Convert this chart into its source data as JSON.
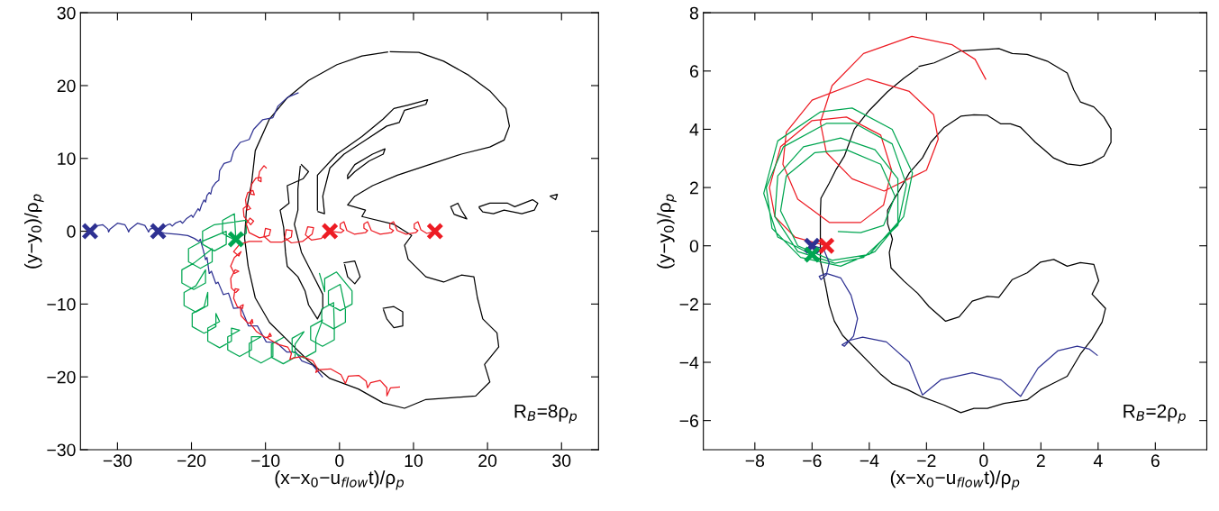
{
  "chart_data": [
    {
      "type": "line",
      "xlabel": "(x−x$_{0}$−u$_{flow}$t)/ρ$_{p}$",
      "ylabel": "(y−y$_{0}$)/ρ$_{p}$",
      "xlim": [
        -35,
        35
      ],
      "ylim": [
        -30,
        30
      ],
      "xticks": [
        -30,
        -20,
        -10,
        0,
        10,
        20,
        30
      ],
      "yticks": [
        -30,
        -20,
        -10,
        0,
        10,
        20,
        30
      ],
      "annotations": [
        "R$_{B}$=8ρ$_{p}$"
      ],
      "series": [
        {
          "type": "line",
          "color": "#000000",
          "x": [
            6.87,
            10.71,
            14.07,
            17.44,
            20.32,
            22.48,
            22.96,
            22.24,
            20.32,
            16.47,
            12.15,
            7.83,
            4.47,
            2.07,
            1.1,
            3.51,
            3.03,
            7.35,
            9.75,
            8.79,
            9.27,
            11.67,
            14.07,
            16.47,
            18.16,
            18.64,
            19.36,
            21.28,
            21.52,
            19.6,
            20.32,
            18.4,
            15.03,
            11.67,
            8.79,
            5.91,
            2.55,
            -1.3,
            -4.18,
            -6.58,
            -9.46,
            -11.38,
            -12.34,
            -12.82,
            -12.58,
            -11.86,
            -11.38,
            -9.46,
            -7.06,
            -4.18,
            -0.34,
            3.03,
            6.5
          ],
          "values": [
            24.65,
            24.55,
            23.35,
            21.43,
            19.26,
            16.85,
            14.44,
            12.52,
            11.56,
            10.59,
            9.15,
            7.7,
            6.26,
            4.81,
            3.61,
            2.89,
            2.02,
            0.96,
            -0.58,
            -1.93,
            -3.85,
            -6.26,
            -6.98,
            -6.02,
            -6.26,
            -9.15,
            -12.04,
            -13.96,
            -15.89,
            -18.3,
            -20.7,
            -22.63,
            -22.87,
            -23.11,
            -24.31,
            -23.59,
            -21.67,
            -20.22,
            -17.81,
            -15.41,
            -12.52,
            -9.15,
            -4.81,
            -0.96,
            2.89,
            6.74,
            11.07,
            15.41,
            18.3,
            20.7,
            22.87,
            24.07,
            24.6
          ]
        },
        {
          "type": "line",
          "color": "#000000",
          "x": [
            -5.14,
            -4.18,
            -4.9,
            -7.06,
            -6.82,
            -8.02,
            -7.54,
            -7.3,
            -7.06,
            -5.62,
            -4.66,
            -4.18,
            -2.98,
            -2.26,
            -2.26,
            -3.22,
            -4.18,
            -5.14,
            -5.62,
            -6.1,
            -5.62,
            -5.62,
            -5.3
          ],
          "values": [
            9.15,
            8.18,
            7.22,
            6.26,
            3.85,
            2.89,
            0.48,
            -2.89,
            -4.81,
            -6.26,
            -8.18,
            -10.11,
            -12.04,
            -10.59,
            -8.67,
            -6.74,
            -4.81,
            -2.89,
            -0.96,
            0.96,
            2.89,
            5.78,
            8.9
          ]
        },
        {
          "type": "line",
          "color": "#000000",
          "x": [
            -2.98,
            -2.98,
            -0.34,
            3.03,
            5.91,
            7.35,
            9.27,
            11.91,
            11.67,
            8.79,
            8.07,
            6.39,
            3.51,
            0.62,
            -1.3,
            -2.26,
            -2.02,
            -2.9
          ],
          "values": [
            2.89,
            7.7,
            10.59,
            13.0,
            15.41,
            16.85,
            17.33,
            18.05,
            17.43,
            16.61,
            14.93,
            14.44,
            12.52,
            10.59,
            8.67,
            4.81,
            2.41,
            2.7
          ]
        },
        {
          "type": "line",
          "color": "#000000",
          "x": [
            1.1,
            2.07,
            4.47,
            6.15,
            5.91,
            3.99,
            2.07,
            1.1,
            1.1
          ],
          "values": [
            7.7,
            9.15,
            10.59,
            11.31,
            10.59,
            9.63,
            8.18,
            7.22,
            7.6
          ]
        },
        {
          "type": "line",
          "color": "#000000",
          "x": [
            18.88,
            20.32,
            22.72,
            23.68,
            26.08,
            26.8,
            26.32,
            24.64,
            22.24,
            20.8,
            19.36,
            18.9
          ],
          "values": [
            3.37,
            3.85,
            3.85,
            3.37,
            4.33,
            3.85,
            2.89,
            2.41,
            2.89,
            2.41,
            2.65,
            3.2
          ]
        },
        {
          "type": "line",
          "color": "#000000",
          "x": [
            15.03,
            15.99,
            16.47,
            17.2,
            15.51,
            15.1
          ],
          "values": [
            3.37,
            3.85,
            2.89,
            1.69,
            2.31,
            3.2
          ]
        },
        {
          "type": "line",
          "color": "#000000",
          "x": [
            5.91,
            7.35,
            8.55,
            8.55,
            7.35,
            6.39,
            5.95
          ],
          "values": [
            -10.59,
            -10.35,
            -11.07,
            -13.0,
            -13.24,
            -12.04,
            -10.8
          ]
        },
        {
          "type": "line",
          "color": "#000000",
          "x": [
            0.62,
            2.07,
            2.79,
            2.07,
            1.1,
            0.7
          ],
          "values": [
            -4.33,
            -4.09,
            -6.26,
            -7.22,
            -6.26,
            -4.6
          ]
        },
        {
          "type": "line",
          "color": "#000000",
          "x": [
            28.48,
            29.44,
            29.2,
            28.6
          ],
          "values": [
            4.81,
            5.06,
            4.33,
            4.7
          ]
        },
        {
          "type": "line",
          "color": "#2e3192",
          "x": [
            -33.7,
            -33.0,
            -32.0,
            -31.3,
            -31.2,
            -31.0,
            -30.0,
            -29.0,
            -28.6,
            -28.5,
            -28.3,
            -27.3,
            -26.3,
            -25.9,
            -25.8,
            -25.6,
            -24.8,
            -24.5
          ],
          "values": [
            0,
            0.7,
            0.9,
            0.3,
            -0.1,
            0.3,
            1.1,
            0.9,
            0.2,
            -0.1,
            0.3,
            1.1,
            0.8,
            0.1,
            -0.1,
            0.3,
            0.5,
            0
          ]
        },
        {
          "type": "line",
          "color": "#2e3192",
          "x": [
            -24.5,
            -23.8,
            -23.2,
            -22.9,
            -22.6,
            -22.2,
            -21.5,
            -21.2,
            -20.7,
            -20.0,
            -19.8,
            -19.4,
            -19.1,
            -18.9,
            -18.6,
            -18.3,
            -18.1,
            -17.9,
            -17.6,
            -17.4,
            -17.2,
            -16.7,
            -16.3,
            -16.2,
            -15.6,
            -14.7,
            -14.3,
            -13.4,
            -12.2,
            -11.6,
            -10.4,
            -9.0,
            -8.3,
            -7.0,
            -5.6
          ],
          "values": [
            0,
            0.5,
            0.9,
            1.0,
            0.7,
            1.1,
            1.4,
            1.1,
            1.7,
            2.2,
            1.9,
            2.6,
            3.1,
            2.8,
            3.7,
            4.3,
            4.0,
            4.9,
            5.3,
            5.1,
            6.0,
            6.7,
            7.0,
            8.3,
            9.3,
            9.6,
            11.0,
            12.2,
            12.6,
            14.0,
            15.3,
            15.6,
            17.2,
            18.4,
            19.0
          ]
        },
        {
          "type": "line",
          "color": "#2e3192",
          "x": [
            -24.5,
            -23.5,
            -22.0,
            -20.5,
            -19.6,
            -19.0,
            -18.8,
            -18.6,
            -18.4,
            -18.1,
            -17.9,
            -17.6,
            -17.3,
            -16.7,
            -16.4,
            -15.7,
            -15.0,
            -14.3,
            -13.3,
            -12.3,
            -11.1,
            -9.9,
            -8.5,
            -7.1,
            -5.9,
            -5.1,
            -3.6,
            -2.3
          ],
          "values": [
            0,
            -0.3,
            -0.4,
            -0.6,
            -1.0,
            -1.4,
            -1.1,
            -1.9,
            -2.6,
            -3.9,
            -3.6,
            -5.8,
            -5.5,
            -7.2,
            -7.0,
            -8.7,
            -8.5,
            -10.6,
            -10.5,
            -13.0,
            -13.0,
            -15.2,
            -15.3,
            -16.6,
            -16.6,
            -17.8,
            -18.4,
            -20.0
          ]
        },
        {
          "type": "line",
          "color": "#00a651",
          "x": [
            -14.0,
            -14.2,
            -15.8,
            -15.8,
            -14.2,
            -12.6,
            -12.6,
            -16.9,
            -18.5,
            -18.5,
            -16.9,
            -15.3,
            -15.3,
            -18.8,
            -20.4,
            -20.4,
            -18.8,
            -17.2,
            -17.2,
            -19.7,
            -21.3,
            -21.3,
            -19.7,
            -18.1,
            -18.1,
            -19.4,
            -21.0,
            -21.0,
            -19.4,
            -17.8,
            -17.8,
            -18.3,
            -19.9,
            -19.9,
            -18.3,
            -16.7,
            -16.7,
            -16.2,
            -17.8,
            -17.8,
            -16.2,
            -14.6,
            -14.6,
            -13.5,
            -15.1,
            -15.1,
            -13.5,
            -11.9,
            -11.9,
            -10.6,
            -12.2,
            -12.2,
            -10.6,
            -9.0,
            -9.0,
            -7.6,
            -9.2,
            -9.2,
            -7.6,
            -6.0,
            -6.0,
            -4.8,
            -6.4,
            -6.4,
            -4.8,
            -3.2,
            -3.2,
            -2.3,
            -3.9,
            -3.9,
            -2.3,
            -0.7,
            -0.7,
            -0.8,
            -2.4,
            -2.4,
            -0.8,
            0.8,
            0.8,
            0.1,
            -1.5,
            -1.5,
            0.1,
            1.7,
            1.7,
            -0.4,
            -2.0,
            -2.0,
            -2.7
          ],
          "values": [
            -1.1,
            2.4,
            1.5,
            -0.3,
            -1.2,
            -0.3,
            1.5,
            0.9,
            0.0,
            -1.8,
            -2.7,
            -1.8,
            0.0,
            -1.5,
            -2.4,
            -4.2,
            -5.1,
            -4.2,
            -2.4,
            -4.4,
            -5.3,
            -7.1,
            -8.0,
            -7.1,
            -5.3,
            -7.5,
            -8.4,
            -10.2,
            -11.1,
            -10.2,
            -8.4,
            -10.4,
            -11.3,
            -13.1,
            -14.0,
            -13.1,
            -11.3,
            -12.4,
            -13.3,
            -15.1,
            -16.0,
            -15.1,
            -13.3,
            -13.6,
            -14.5,
            -16.3,
            -17.2,
            -16.3,
            -14.5,
            -14.5,
            -15.4,
            -17.2,
            -18.1,
            -17.2,
            -15.4,
            -14.6,
            -15.5,
            -17.3,
            -18.2,
            -17.3,
            -15.5,
            -13.8,
            -14.7,
            -16.5,
            -17.4,
            -16.5,
            -14.7,
            -12.2,
            -13.1,
            -14.9,
            -15.8,
            -14.9,
            -13.1,
            -9.8,
            -10.7,
            -12.5,
            -13.4,
            -12.5,
            -10.7,
            -7.3,
            -8.2,
            -10.0,
            -10.9,
            -10.0,
            -8.2,
            -5.6,
            -6.5,
            -8.3,
            -5.8
          ]
        },
        {
          "type": "line",
          "color": "#ed1c24",
          "x": [
            12.9,
            11.8,
            11.0,
            10.6,
            10.1,
            10.1,
            10.6,
            10.3,
            9.0,
            7.8,
            7.3,
            6.8,
            6.8,
            7.3,
            7.0,
            5.5,
            4.3,
            3.8,
            3.3,
            3.3,
            3.8,
            3.5,
            2.0,
            1.0,
            0.6,
            0.1,
            0.1,
            0.6,
            0.2,
            -1.3
          ],
          "values": [
            0,
            -0.3,
            0.2,
            1.3,
            1.0,
            0.4,
            0.1,
            -0.2,
            -0.4,
            0.1,
            1.3,
            1.0,
            0.4,
            0.1,
            -0.2,
            -0.4,
            0.1,
            1.3,
            1.0,
            0.4,
            0.1,
            -0.2,
            -0.4,
            0.1,
            1.3,
            1.0,
            0.4,
            0.1,
            -0.2,
            0
          ]
        },
        {
          "type": "line",
          "color": "#ed1c24",
          "x": [
            -1.3,
            -2.5,
            -3.8,
            -4.6,
            -4.3,
            -3.5,
            -3.7,
            -5.0,
            -6.5,
            -7.4,
            -7.2,
            -6.4,
            -6.5,
            -7.8,
            -9.3,
            -10.2,
            -10.0,
            -9.3,
            -9.5,
            -10.8,
            -12.2,
            -12.6,
            -12.1,
            -11.6,
            -12.0,
            -12.9,
            -13.0,
            -12.4,
            -12.0,
            -12.5,
            -12.7,
            -12.4,
            -11.7,
            -11.5,
            -12.0,
            -11.9,
            -11.3,
            -10.6,
            -10.6,
            -11.0,
            -10.8,
            -10.2,
            -9.9
          ],
          "values": [
            0,
            -1.0,
            -1.2,
            -0.5,
            0.6,
            0.5,
            -0.4,
            -1.4,
            -1.6,
            -0.9,
            0.2,
            0.1,
            -0.8,
            -1.5,
            -1.5,
            -0.7,
            0.4,
            0.2,
            -0.6,
            -0.9,
            -0.2,
            1.0,
            1.8,
            1.4,
            0.9,
            2.0,
            3.1,
            3.6,
            3.1,
            2.9,
            4.3,
            5.3,
            5.6,
            5.0,
            5.1,
            6.4,
            7.3,
            7.4,
            6.8,
            7.0,
            8.2,
            9.0,
            8.7
          ]
        },
        {
          "type": "line",
          "color": "#ed1c24",
          "x": [
            -10.5,
            -12.2,
            -13.5,
            -14.3,
            -13.6,
            -13.3,
            -14.2,
            -14.7,
            -14.2,
            -13.6,
            -14.1,
            -14.7,
            -14.6,
            -14.0,
            -13.6,
            -14.1,
            -14.3,
            -13.8,
            -13.1,
            -13.0,
            -13.4,
            -13.3,
            -12.4,
            -11.7,
            -11.8,
            -12.1,
            -11.2,
            -10.0,
            -9.2,
            -9.4,
            -9.7,
            -8.4,
            -7.0,
            -6.5,
            -6.7,
            -6.2,
            -5.0,
            -3.6,
            -3.0,
            -3.2,
            -2.6,
            -1.2,
            0.2,
            0.8,
            1.2,
            2.6,
            3.6,
            3.8,
            4.2,
            5.5,
            6.4,
            6.4,
            6.9,
            8.1
          ],
          "values": [
            -1.4,
            -1.4,
            -1.8,
            -2.8,
            -3.4,
            -2.8,
            -3.6,
            -4.8,
            -5.8,
            -5.5,
            -5.3,
            -6.5,
            -7.8,
            -8.4,
            -8.0,
            -7.9,
            -9.2,
            -10.4,
            -10.6,
            -10.1,
            -10.3,
            -11.6,
            -12.6,
            -12.6,
            -12.1,
            -12.6,
            -13.8,
            -14.6,
            -14.4,
            -14.0,
            -14.7,
            -15.5,
            -15.9,
            -16.8,
            -17.6,
            -17.4,
            -17.2,
            -17.8,
            -18.8,
            -19.4,
            -19.0,
            -18.9,
            -19.7,
            -20.9,
            -19.9,
            -19.8,
            -20.6,
            -21.5,
            -20.8,
            -20.5,
            -21.5,
            -22.6,
            -21.5,
            -21.4
          ]
        },
        {
          "type": "scatter",
          "marker": "cross",
          "color": "#2e3192",
          "x": [
            -33.7,
            -24.5
          ],
          "values": [
            0,
            0
          ]
        },
        {
          "type": "scatter",
          "marker": "cross",
          "color": "#00a651",
          "x": [
            -14.0
          ],
          "values": [
            -1.1
          ]
        },
        {
          "type": "scatter",
          "marker": "cross",
          "color": "#ed1c24",
          "x": [
            -1.3,
            12.9
          ],
          "values": [
            0,
            0
          ]
        }
      ]
    },
    {
      "type": "line",
      "xlabel": "(x−x$_{0}$−u$_{flow}$t)/ρ$_{p}$",
      "ylabel": "(y−y$_{0}$)/ρ$_{p}$",
      "xlim": [
        -9.8,
        7.8
      ],
      "ylim": [
        -7,
        8
      ],
      "xticks": [
        -8,
        -6,
        -4,
        -2,
        0,
        2,
        4,
        6
      ],
      "yticks": [
        -6,
        -4,
        -2,
        0,
        2,
        4,
        6,
        8
      ],
      "annotations": [
        "R$_{B}$=2ρ$_{p}$"
      ],
      "series": [
        {
          "type": "line",
          "color": "#000000",
          "x": [
            -2.26,
            -1.73,
            -0.8,
            0.53,
            1.0,
            1.52,
            2.22,
            2.92,
            3.15,
            3.38,
            3.85,
            4.2,
            4.45,
            4.45,
            4.2,
            3.79,
            3.38,
            2.92,
            2.45,
            2.1,
            1.81,
            1.52,
            1.29,
            0.94,
            0.59,
            0.13,
            -0.34,
            -0.8,
            -1.38,
            -1.85,
            -2.14,
            -2.6,
            -2.9,
            -3.36,
            -3.36,
            -3.19,
            -3.3,
            -3.24,
            -2.78,
            -2.31,
            -1.91,
            -1.33,
            -0.86,
            -0.4,
            0.13,
            0.53,
            1.0,
            1.52,
            1.99,
            2.45,
            2.92,
            3.38,
            3.85,
            4.02,
            3.79,
            4.26,
            4.14,
            3.79,
            3.38,
            2.92,
            2.45,
            1.99,
            1.52,
            0.71,
            0.13,
            -0.34,
            -0.8,
            -1.38,
            -2.2,
            -2.66,
            -3.19,
            -3.59,
            -4.06,
            -4.52,
            -4.93,
            -5.22,
            -5.4,
            -5.51,
            -5.63,
            -5.71,
            -5.71,
            -5.71,
            -5.71,
            -5.69,
            -5.4,
            -5.16,
            -4.87,
            -4.52,
            -4.0,
            -3.36,
            -2.78,
            -2.3
          ],
          "values": [
            6.16,
            6.28,
            6.69,
            6.77,
            6.6,
            6.57,
            6.34,
            5.93,
            5.35,
            4.94,
            4.77,
            4.42,
            4.01,
            3.55,
            3.08,
            2.85,
            2.76,
            2.81,
            3.01,
            3.31,
            3.55,
            3.84,
            4.07,
            4.19,
            4.19,
            4.48,
            4.5,
            4.45,
            4.07,
            3.55,
            3.02,
            2.5,
            1.98,
            1.22,
            0.76,
            0.23,
            -0.23,
            -0.76,
            -1.22,
            -1.63,
            -2.09,
            -2.59,
            -2.44,
            -1.9,
            -1.74,
            -1.77,
            -1.16,
            -0.93,
            -0.56,
            -0.47,
            -0.7,
            -0.58,
            -0.64,
            -1.2,
            -1.66,
            -2.15,
            -2.62,
            -3.2,
            -3.72,
            -4.48,
            -4.71,
            -4.94,
            -5.29,
            -5.41,
            -5.58,
            -5.58,
            -5.73,
            -5.47,
            -5.17,
            -4.94,
            -4.74,
            -4.42,
            -3.95,
            -3.49,
            -3.08,
            -2.59,
            -2.03,
            -1.45,
            -0.87,
            -0.52,
            0.06,
            0.52,
            1.1,
            1.63,
            2.15,
            2.62,
            3.08,
            4.01,
            4.65,
            5.29,
            5.76,
            6.1
          ]
        },
        {
          "type": "line",
          "color": "#ed1c24",
          "x": [
            -5.51,
            -6.6,
            -7.3,
            -7.49,
            -7.1,
            -6.0,
            -4.8,
            -3.6,
            -3.22,
            -3.5,
            -4.3,
            -5.4,
            -6.5,
            -7.02,
            -6.9,
            -6.0,
            -4.06,
            -2.6,
            -1.75,
            -1.59,
            -2.0,
            -3.48,
            -4.6,
            -5.5,
            -5.71,
            -5.3,
            -4.2,
            -2.51,
            -1.1,
            -0.3,
            0.07
          ],
          "values": [
            0,
            0.3,
            1.0,
            2.0,
            3.4,
            4.3,
            4.42,
            3.8,
            2.6,
            1.4,
            0.8,
            0.8,
            1.6,
            2.8,
            3.9,
            5.0,
            5.73,
            5.3,
            4.5,
            3.66,
            2.6,
            1.88,
            2.3,
            3.2,
            4.24,
            5.5,
            6.6,
            7.19,
            6.9,
            6.4,
            5.72
          ]
        },
        {
          "type": "line",
          "color": "#00a651",
          "x": [
            -6.0,
            -7.2,
            -7.69,
            -7.2,
            -5.7,
            -4.6,
            -3.2,
            -2.49,
            -2.8,
            -3.8,
            -5.0,
            -6.4,
            -7.4,
            -7.6,
            -7.0,
            -5.5,
            -4.5,
            -3.2,
            -2.7,
            -3.0,
            -4.2,
            -5.2,
            -6.5,
            -7.3,
            -7.2,
            -6.3,
            -5.0,
            -3.8,
            -3.0,
            -3.0,
            -4.0,
            -5.3,
            -6.5,
            -7.1,
            -6.9,
            -5.9,
            -4.8,
            -3.6,
            -3.1,
            -3.5,
            -4.3,
            -5.08
          ],
          "values": [
            -0.31,
            0.3,
            1.8,
            3.6,
            4.6,
            4.73,
            4.0,
            2.5,
            1.0,
            -0.2,
            -0.7,
            -0.4,
            0.6,
            2.0,
            3.4,
            4.2,
            4.2,
            3.5,
            2.1,
            0.7,
            -0.4,
            -0.6,
            -0.2,
            1.0,
            2.4,
            3.4,
            3.7,
            3.3,
            2.3,
            0.8,
            -0.3,
            -0.5,
            0.0,
            1.2,
            2.4,
            3.2,
            3.3,
            2.8,
            1.7,
            0.7,
            0.45,
            0.49
          ]
        },
        {
          "type": "line",
          "color": "#2e3192",
          "x": [
            -6.0,
            -5.6,
            -5.4,
            -5.5,
            -5.69,
            -5.75,
            -5.5,
            -5.0,
            -4.64,
            -4.41,
            -4.55,
            -4.87,
            -4.95,
            -4.7,
            -4.23,
            -3.4,
            -2.6,
            -2.14,
            -1.5,
            -0.4,
            0.6,
            1.29,
            1.9,
            2.6,
            3.27,
            3.7,
            3.97
          ],
          "values": [
            0,
            -0.1,
            -0.58,
            -1.0,
            -1.16,
            -1.05,
            -0.95,
            -1.1,
            -1.69,
            -2.5,
            -3.1,
            -3.45,
            -3.4,
            -3.25,
            -3.14,
            -3.3,
            -4.0,
            -5.12,
            -4.6,
            -4.36,
            -4.6,
            -5.17,
            -4.2,
            -3.6,
            -3.45,
            -3.55,
            -3.76
          ]
        },
        {
          "type": "scatter",
          "marker": "cross",
          "color": "#2e3192",
          "x": [
            -6.0
          ],
          "values": [
            0
          ]
        },
        {
          "type": "scatter",
          "marker": "cross",
          "color": "#ed1c24",
          "x": [
            -5.5
          ],
          "values": [
            0
          ]
        },
        {
          "type": "scatter",
          "marker": "cross",
          "color": "#00a651",
          "x": [
            -6.0
          ],
          "values": [
            -0.3
          ]
        }
      ]
    }
  ]
}
